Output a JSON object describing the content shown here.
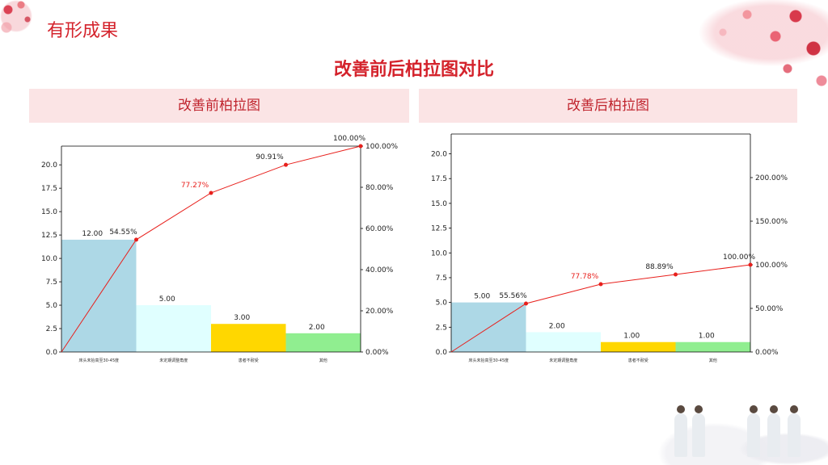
{
  "page_title": "有形成果",
  "compare_title": "改善前后柏拉图对比",
  "panels": [
    {
      "header": "改善前柏拉图"
    },
    {
      "header": "改善后柏拉图"
    }
  ],
  "chart_data": [
    {
      "type": "bar",
      "combo": "pareto",
      "categories": [
        "床头未抬高至30-45度",
        "未定期调整角度",
        "患者不耐受",
        "其他"
      ],
      "values": [
        12,
        5,
        3,
        2
      ],
      "value_labels": [
        "12.00",
        "5.00",
        "3.00",
        "2.00"
      ],
      "bar_colors": [
        "#add8e6",
        "#e0ffff",
        "#ffd700",
        "#90ee90"
      ],
      "cumulative_percent": [
        54.55,
        77.27,
        90.91,
        100.0
      ],
      "cumulative_labels": [
        "54.55%",
        "77.27%",
        "90.91%",
        "100.00%"
      ],
      "line_color": "#e8201c",
      "ylim": [
        0,
        22
      ],
      "yticks": [
        "0.0",
        "2.5",
        "5.0",
        "7.5",
        "10.0",
        "12.5",
        "15.0",
        "17.5",
        "20.0"
      ],
      "y2lim": [
        0,
        100
      ],
      "y2ticks": [
        "0.00%",
        "20.00%",
        "40.00%",
        "60.00%",
        "80.00%",
        "100.00%"
      ],
      "y2tick_values": [
        0,
        20,
        40,
        60,
        80,
        100
      ]
    },
    {
      "type": "bar",
      "combo": "pareto",
      "categories": [
        "床头未抬高至30-45度",
        "未定期调整角度",
        "患者不耐受",
        "其他"
      ],
      "values": [
        5,
        2,
        1,
        1
      ],
      "value_labels": [
        "5.00",
        "2.00",
        "1.00",
        "1.00"
      ],
      "bar_colors": [
        "#add8e6",
        "#e0ffff",
        "#ffd700",
        "#90ee90"
      ],
      "cumulative_percent": [
        55.56,
        77.78,
        88.89,
        100.0
      ],
      "cumulative_labels": [
        "55.56%",
        "77.78%",
        "88.89%",
        "100.00%"
      ],
      "line_color": "#e8201c",
      "ylim": [
        0,
        22
      ],
      "yticks": [
        "0.0",
        "2.5",
        "5.0",
        "7.5",
        "10.0",
        "12.5",
        "15.0",
        "17.5",
        "20.0"
      ],
      "y2lim": [
        0,
        250
      ],
      "y2ticks": [
        "0.00%",
        "50.00%",
        "100.00%",
        "150.00%",
        "200.00%"
      ],
      "y2tick_values": [
        0,
        50,
        100,
        150,
        200
      ]
    }
  ]
}
